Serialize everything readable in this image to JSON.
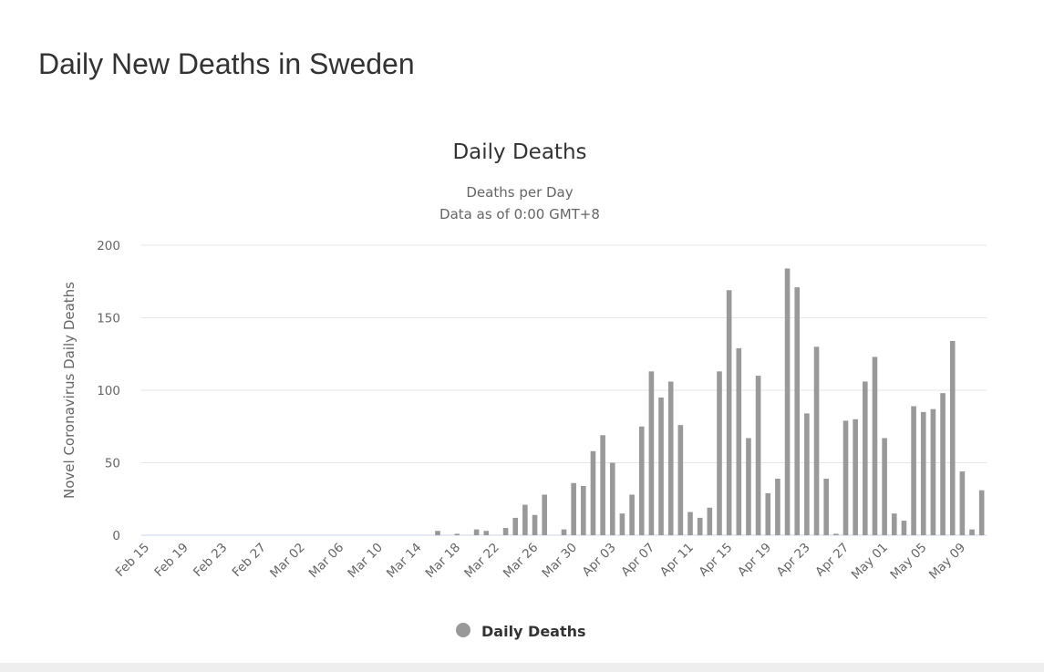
{
  "page": {
    "title": "Daily New Deaths in Sweden"
  },
  "chart_data": {
    "type": "bar",
    "title": "Daily Deaths",
    "subtitle": [
      "Deaths per Day",
      "Data as of 0:00 GMT+8"
    ],
    "ylabel": "Novel Coronavirus Daily Deaths",
    "xlabel": "",
    "ylim": [
      0,
      200
    ],
    "yticks": [
      0,
      50,
      100,
      150,
      200
    ],
    "grid": true,
    "legend_position": "bottom",
    "color": "#999999",
    "tick_labels": [
      "Feb 15",
      "Feb 19",
      "Feb 23",
      "Feb 27",
      "Mar 02",
      "Mar 06",
      "Mar 10",
      "Mar 14",
      "Mar 18",
      "Mar 22",
      "Mar 26",
      "Mar 30",
      "Apr 03",
      "Apr 07",
      "Apr 11",
      "Apr 15",
      "Apr 19",
      "Apr 23",
      "Apr 27",
      "May 01",
      "May 05",
      "May 09"
    ],
    "categories": [
      "Feb 15",
      "Feb 16",
      "Feb 17",
      "Feb 18",
      "Feb 19",
      "Feb 20",
      "Feb 21",
      "Feb 22",
      "Feb 23",
      "Feb 24",
      "Feb 25",
      "Feb 26",
      "Feb 27",
      "Feb 28",
      "Feb 29",
      "Mar 01",
      "Mar 02",
      "Mar 03",
      "Mar 04",
      "Mar 05",
      "Mar 06",
      "Mar 07",
      "Mar 08",
      "Mar 09",
      "Mar 10",
      "Mar 11",
      "Mar 12",
      "Mar 13",
      "Mar 14",
      "Mar 15",
      "Mar 16",
      "Mar 17",
      "Mar 18",
      "Mar 19",
      "Mar 20",
      "Mar 21",
      "Mar 22",
      "Mar 23",
      "Mar 24",
      "Mar 25",
      "Mar 26",
      "Mar 27",
      "Mar 28",
      "Mar 29",
      "Mar 30",
      "Mar 31",
      "Apr 01",
      "Apr 02",
      "Apr 03",
      "Apr 04",
      "Apr 05",
      "Apr 06",
      "Apr 07",
      "Apr 08",
      "Apr 09",
      "Apr 10",
      "Apr 11",
      "Apr 12",
      "Apr 13",
      "Apr 14",
      "Apr 15",
      "Apr 16",
      "Apr 17",
      "Apr 18",
      "Apr 19",
      "Apr 20",
      "Apr 21",
      "Apr 22",
      "Apr 23",
      "Apr 24",
      "Apr 25",
      "Apr 26",
      "Apr 27",
      "Apr 28",
      "Apr 29",
      "Apr 30",
      "May 01",
      "May 02",
      "May 03",
      "May 04",
      "May 05",
      "May 06",
      "May 07",
      "May 08",
      "May 09",
      "May 10",
      "May 11"
    ],
    "series": [
      {
        "name": "Daily Deaths",
        "values": [
          0,
          0,
          0,
          0,
          0,
          0,
          0,
          0,
          0,
          0,
          0,
          0,
          0,
          0,
          0,
          0,
          0,
          0,
          0,
          0,
          0,
          0,
          0,
          0,
          0,
          0,
          0,
          0,
          0,
          0,
          3,
          0,
          1,
          0,
          4,
          3,
          0,
          5,
          12,
          21,
          14,
          28,
          0,
          4,
          36,
          34,
          58,
          69,
          50,
          15,
          28,
          75,
          113,
          95,
          106,
          76,
          16,
          12,
          19,
          113,
          169,
          129,
          67,
          110,
          29,
          39,
          184,
          171,
          84,
          130,
          39,
          1,
          79,
          80,
          106,
          123,
          67,
          15,
          10,
          89,
          85,
          87,
          98,
          134,
          44,
          4,
          31
        ]
      }
    ]
  }
}
